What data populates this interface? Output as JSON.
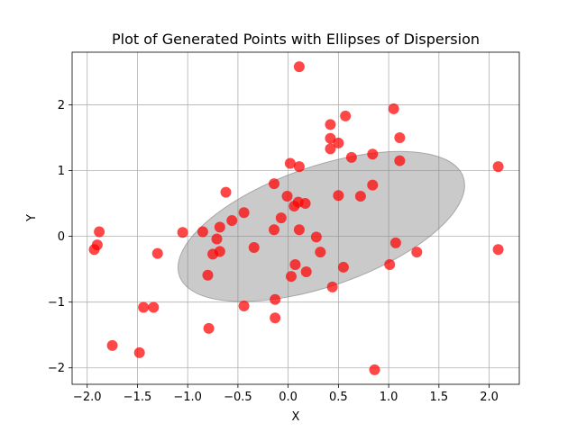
{
  "chart_data": {
    "type": "scatter",
    "title": "Plot of Generated Points with Ellipses of Dispersion",
    "xlabel": "X",
    "ylabel": "Y",
    "xlim": [
      -2.15,
      2.3
    ],
    "ylim": [
      -2.25,
      2.8
    ],
    "xticks": [
      -2.0,
      -1.5,
      -1.0,
      -0.5,
      0.0,
      0.5,
      1.0,
      1.5,
      2.0
    ],
    "yticks": [
      -2,
      -1,
      0,
      1,
      2
    ],
    "grid": true,
    "point_color": "#ff0000",
    "ellipse": {
      "center": [
        0.33,
        0.15
      ],
      "semi_axes_data": [
        1.6,
        0.8
      ],
      "angle_deg": 28,
      "color": "#808080"
    },
    "points": [
      [
        0.11,
        2.58
      ],
      [
        1.05,
        1.94
      ],
      [
        0.42,
        1.7
      ],
      [
        0.57,
        1.83
      ],
      [
        0.42,
        1.49
      ],
      [
        0.5,
        1.42
      ],
      [
        0.42,
        1.33
      ],
      [
        1.11,
        1.5
      ],
      [
        0.63,
        1.2
      ],
      [
        0.84,
        1.25
      ],
      [
        1.11,
        1.15
      ],
      [
        0.02,
        1.11
      ],
      [
        0.11,
        1.06
      ],
      [
        2.09,
        1.06
      ],
      [
        -0.14,
        0.8
      ],
      [
        0.84,
        0.78
      ],
      [
        -0.62,
        0.67
      ],
      [
        0.5,
        0.62
      ],
      [
        0.72,
        0.61
      ],
      [
        -0.01,
        0.61
      ],
      [
        0.1,
        0.52
      ],
      [
        0.17,
        0.5
      ],
      [
        0.06,
        0.46
      ],
      [
        -0.44,
        0.36
      ],
      [
        -0.07,
        0.28
      ],
      [
        -0.56,
        0.24
      ],
      [
        -0.68,
        0.14
      ],
      [
        -0.14,
        0.1
      ],
      [
        0.11,
        0.1
      ],
      [
        -1.05,
        0.06
      ],
      [
        -0.85,
        0.07
      ],
      [
        -1.88,
        0.07
      ],
      [
        -0.71,
        -0.04
      ],
      [
        0.28,
        -0.01
      ],
      [
        1.07,
        -0.1
      ],
      [
        -1.9,
        -0.13
      ],
      [
        -1.93,
        -0.2
      ],
      [
        -0.34,
        -0.17
      ],
      [
        2.09,
        -0.2
      ],
      [
        -0.68,
        -0.23
      ],
      [
        -0.75,
        -0.27
      ],
      [
        -1.3,
        -0.26
      ],
      [
        0.32,
        -0.24
      ],
      [
        1.28,
        -0.24
      ],
      [
        0.07,
        -0.43
      ],
      [
        1.01,
        -0.43
      ],
      [
        0.55,
        -0.47
      ],
      [
        0.18,
        -0.54
      ],
      [
        -0.8,
        -0.59
      ],
      [
        0.03,
        -0.61
      ],
      [
        0.44,
        -0.77
      ],
      [
        -0.13,
        -0.96
      ],
      [
        -1.44,
        -1.08
      ],
      [
        -1.34,
        -1.08
      ],
      [
        -0.44,
        -1.06
      ],
      [
        -0.13,
        -1.24
      ],
      [
        -0.79,
        -1.4
      ],
      [
        -1.75,
        -1.66
      ],
      [
        -1.48,
        -1.77
      ],
      [
        0.86,
        -2.03
      ]
    ]
  }
}
